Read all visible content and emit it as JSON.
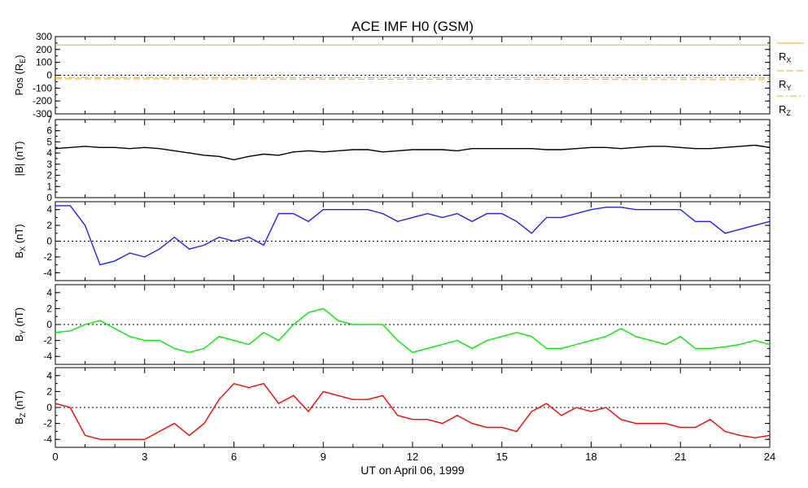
{
  "title": "ACE IMF H0 (GSM)",
  "colors": {
    "pos": "#ffaa00",
    "babs": "#000000",
    "bx": "#2020ff",
    "by": "#00ee00",
    "bz": "#ff0000"
  },
  "chart_data": [
    {
      "type": "line",
      "id": "pos",
      "ylabel": "Pos (R",
      "ylabel_sub": "E",
      "ylabel_end": ")",
      "ylim": [
        -300,
        300
      ],
      "yticks": [
        -300,
        -200,
        -100,
        0,
        100,
        200,
        300
      ],
      "ytick_labels": [
        "-300",
        "-200",
        "-100",
        "0",
        "100",
        "200",
        "300"
      ],
      "zero_line": true,
      "x": [
        0,
        24
      ],
      "series": [
        {
          "name": "R_X",
          "label": "R",
          "sub": "X",
          "values": [
            235,
            235
          ]
        },
        {
          "name": "R_Y",
          "label": "R",
          "sub": "Y",
          "values": [
            -28,
            -34
          ]
        },
        {
          "name": "R_Z",
          "label": "R",
          "sub": "Z",
          "values": [
            -18,
            -20
          ]
        }
      ]
    },
    {
      "type": "line",
      "id": "babs",
      "ylabel": "|B| (nT)",
      "ylim": [
        0,
        7
      ],
      "yticks": [
        0,
        1,
        2,
        3,
        4,
        5,
        6,
        7
      ],
      "ytick_labels": [
        "0",
        "1",
        "2",
        "3",
        "4",
        "5",
        "6",
        "7"
      ],
      "zero_line": false,
      "x": [
        0,
        0.5,
        1,
        1.5,
        2,
        2.5,
        3,
        3.5,
        4,
        4.5,
        5,
        5.5,
        6,
        6.5,
        7,
        7.5,
        8,
        8.5,
        9,
        9.5,
        10,
        10.5,
        11,
        11.5,
        12,
        12.5,
        13,
        13.5,
        14,
        14.5,
        15,
        15.5,
        16,
        16.5,
        17,
        17.5,
        18,
        18.5,
        19,
        19.5,
        20,
        20.5,
        21,
        21.5,
        22,
        22.5,
        23,
        23.5,
        24
      ],
      "series": [
        {
          "name": "|B|",
          "values": [
            4.4,
            4.5,
            4.6,
            4.5,
            4.5,
            4.4,
            4.5,
            4.4,
            4.2,
            4.0,
            3.8,
            3.7,
            3.4,
            3.7,
            3.9,
            3.8,
            4.1,
            4.2,
            4.1,
            4.2,
            4.3,
            4.3,
            4.1,
            4.2,
            4.3,
            4.3,
            4.3,
            4.2,
            4.4,
            4.4,
            4.4,
            4.4,
            4.4,
            4.3,
            4.3,
            4.4,
            4.5,
            4.5,
            4.4,
            4.5,
            4.6,
            4.6,
            4.5,
            4.4,
            4.4,
            4.5,
            4.6,
            4.7,
            4.5
          ]
        }
      ]
    },
    {
      "type": "line",
      "id": "bx",
      "ylabel": "B",
      "ylabel_sub": "X",
      "ylabel_end": " (nT)",
      "ylim": [
        -5,
        5
      ],
      "yticks": [
        -4,
        -2,
        0,
        2,
        4
      ],
      "ytick_labels": [
        "-4",
        "-2",
        "0",
        "2",
        "4"
      ],
      "zero_line": true,
      "x": [
        0,
        0.5,
        1,
        1.5,
        2,
        2.5,
        3,
        3.5,
        4,
        4.5,
        5,
        5.5,
        6,
        6.5,
        7,
        7.5,
        8,
        8.5,
        9,
        9.5,
        10,
        10.5,
        11,
        11.5,
        12,
        12.5,
        13,
        13.5,
        14,
        14.5,
        15,
        15.5,
        16,
        16.5,
        17,
        17.5,
        18,
        18.5,
        19,
        19.5,
        20,
        20.5,
        21,
        21.5,
        22,
        22.5,
        23,
        23.5,
        24
      ],
      "series": [
        {
          "name": "B_X",
          "values": [
            4.5,
            4.5,
            2.0,
            -3.0,
            -2.5,
            -1.5,
            -2.0,
            -1.0,
            0.5,
            -1.0,
            -0.5,
            0.5,
            0.0,
            0.5,
            -0.5,
            3.5,
            3.5,
            2.5,
            4.0,
            4.0,
            4.0,
            4.0,
            3.5,
            2.5,
            3.0,
            3.5,
            3.0,
            3.5,
            2.5,
            3.5,
            3.5,
            2.5,
            1.0,
            3.0,
            3.0,
            3.5,
            4.0,
            4.3,
            4.3,
            4.0,
            4.0,
            4.0,
            4.0,
            2.5,
            2.5,
            1.0,
            1.5,
            2.0,
            2.5
          ]
        }
      ]
    },
    {
      "type": "line",
      "id": "by",
      "ylabel": "B",
      "ylabel_sub": "Y",
      "ylabel_end": " (nT)",
      "ylim": [
        -5,
        5
      ],
      "yticks": [
        -4,
        -2,
        0,
        2,
        4
      ],
      "ytick_labels": [
        "-4",
        "-2",
        "0",
        "2",
        "4"
      ],
      "zero_line": true,
      "x": [
        0,
        0.5,
        1,
        1.5,
        2,
        2.5,
        3,
        3.5,
        4,
        4.5,
        5,
        5.5,
        6,
        6.5,
        7,
        7.5,
        8,
        8.5,
        9,
        9.5,
        10,
        10.5,
        11,
        11.5,
        12,
        12.5,
        13,
        13.5,
        14,
        14.5,
        15,
        15.5,
        16,
        16.5,
        17,
        17.5,
        18,
        18.5,
        19,
        19.5,
        20,
        20.5,
        21,
        21.5,
        22,
        22.5,
        23,
        23.5,
        24
      ],
      "series": [
        {
          "name": "B_Y",
          "values": [
            -1.0,
            -0.8,
            0.0,
            0.5,
            -0.5,
            -1.5,
            -2.0,
            -2.0,
            -3.0,
            -3.5,
            -3.0,
            -1.5,
            -2.0,
            -2.5,
            -1.0,
            -2.0,
            0.0,
            1.5,
            2.0,
            0.5,
            0.0,
            0.0,
            0.0,
            -2.0,
            -3.5,
            -3.0,
            -2.5,
            -2.0,
            -3.0,
            -2.0,
            -1.5,
            -1.0,
            -1.5,
            -3.0,
            -3.0,
            -2.5,
            -2.0,
            -1.5,
            -0.5,
            -1.5,
            -2.0,
            -2.5,
            -1.5,
            -3.0,
            -3.0,
            -2.8,
            -2.5,
            -2.0,
            -2.5
          ]
        }
      ]
    },
    {
      "type": "line",
      "id": "bz",
      "ylabel": "B",
      "ylabel_sub": "Z",
      "ylabel_end": " (nT)",
      "ylim": [
        -5,
        5
      ],
      "yticks": [
        -4,
        -2,
        0,
        2,
        4
      ],
      "ytick_labels": [
        "-4",
        "-2",
        "0",
        "2",
        "4"
      ],
      "zero_line": true,
      "x": [
        0,
        0.5,
        1,
        1.5,
        2,
        2.5,
        3,
        3.5,
        4,
        4.5,
        5,
        5.5,
        6,
        6.5,
        7,
        7.5,
        8,
        8.5,
        9,
        9.5,
        10,
        10.5,
        11,
        11.5,
        12,
        12.5,
        13,
        13.5,
        14,
        14.5,
        15,
        15.5,
        16,
        16.5,
        17,
        17.5,
        18,
        18.5,
        19,
        19.5,
        20,
        20.5,
        21,
        21.5,
        22,
        22.5,
        23,
        23.5,
        24
      ],
      "series": [
        {
          "name": "B_Z",
          "values": [
            0.5,
            0.0,
            -3.5,
            -4.0,
            -4.0,
            -4.0,
            -4.0,
            -3.0,
            -2.0,
            -3.5,
            -2.0,
            1.0,
            3.0,
            2.5,
            3.0,
            0.5,
            1.5,
            -0.5,
            2.0,
            1.5,
            1.0,
            1.0,
            1.5,
            -1.0,
            -1.5,
            -1.5,
            -2.0,
            -1.0,
            -2.0,
            -2.5,
            -2.5,
            -3.0,
            -0.5,
            0.5,
            -1.0,
            0.0,
            -0.5,
            0.0,
            -1.5,
            -2.0,
            -2.0,
            -2.0,
            -2.5,
            -2.5,
            -1.5,
            -3.0,
            -3.5,
            -3.8,
            -3.5
          ]
        }
      ]
    }
  ],
  "xaxis": {
    "ticks": [
      0,
      3,
      6,
      9,
      12,
      15,
      18,
      21,
      24
    ],
    "tick_labels": [
      "0",
      "3",
      "6",
      "9",
      "12",
      "15",
      "18",
      "21",
      "24"
    ],
    "minor_step": 1,
    "range": [
      0,
      24
    ],
    "label": "UT on April 06, 1999"
  }
}
